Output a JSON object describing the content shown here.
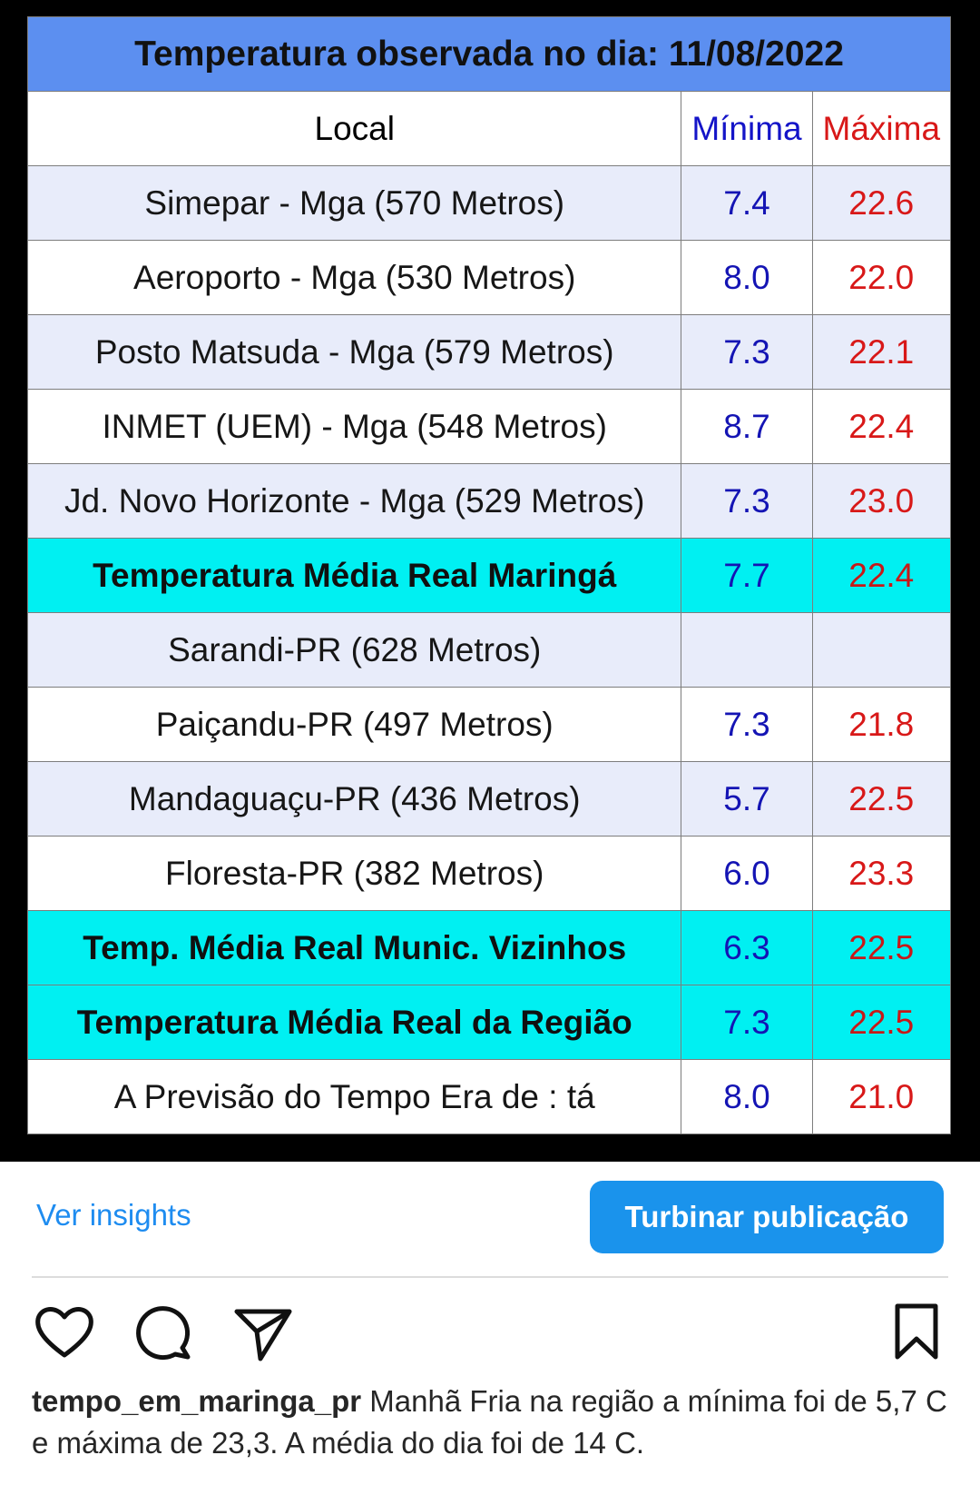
{
  "table": {
    "title": "Temperatura observada no dia: 11/08/2022",
    "headers": {
      "local": "Local",
      "min": "Mínima",
      "max": "Máxima"
    },
    "rows": [
      {
        "local": "Simepar - Mga  (570 Metros)",
        "min": "7.4",
        "max": "22.6",
        "style": "shade"
      },
      {
        "local": "Aeroporto - Mga (530 Metros)",
        "min": "8.0",
        "max": "22.0",
        "style": "plain"
      },
      {
        "local": "Posto Matsuda - Mga (579 Metros)",
        "min": "7.3",
        "max": "22.1",
        "style": "shade"
      },
      {
        "local": "INMET (UEM) - Mga  (548 Metros)",
        "min": "8.7",
        "max": "22.4",
        "style": "plain"
      },
      {
        "local": "Jd. Novo Horizonte - Mga (529 Metros)",
        "min": "7.3",
        "max": "23.0",
        "style": "shade"
      },
      {
        "local": "Temperatura Média Real Maringá",
        "min": "7.7",
        "max": "22.4",
        "style": "avg"
      },
      {
        "local": "Sarandi-PR  (628 Metros)",
        "min": "",
        "max": "",
        "style": "shade"
      },
      {
        "local": "Paiçandu-PR (497 Metros)",
        "min": "7.3",
        "max": "21.8",
        "style": "plain"
      },
      {
        "local": "Mandaguaçu-PR (436 Metros)",
        "min": "5.7",
        "max": "22.5",
        "style": "shade"
      },
      {
        "local": "Floresta-PR (382 Metros)",
        "min": "6.0",
        "max": "23.3",
        "style": "plain"
      },
      {
        "local": "Temp. Média Real Munic. Vizinhos",
        "min": "6.3",
        "max": "22.5",
        "style": "avg"
      },
      {
        "local": "Temperatura Média Real da Região",
        "min": "7.3",
        "max": "22.5",
        "style": "avg"
      },
      {
        "local": "A Previsão do Tempo Era de : tá",
        "min": "8.0",
        "max": "21.0",
        "style": "plain"
      }
    ]
  },
  "actions": {
    "insights_label": "Ver insights",
    "boost_label": "Turbinar publicação"
  },
  "icons": {
    "like": "heart-icon",
    "comment": "comment-icon",
    "share": "send-icon",
    "save": "bookmark-icon"
  },
  "caption": {
    "username": "tempo_em_maringa_pr",
    "text": " Manhã Fria na região a mínima foi de 5,7 C e máxima de 23,3. A média do dia foi de 14 C."
  }
}
